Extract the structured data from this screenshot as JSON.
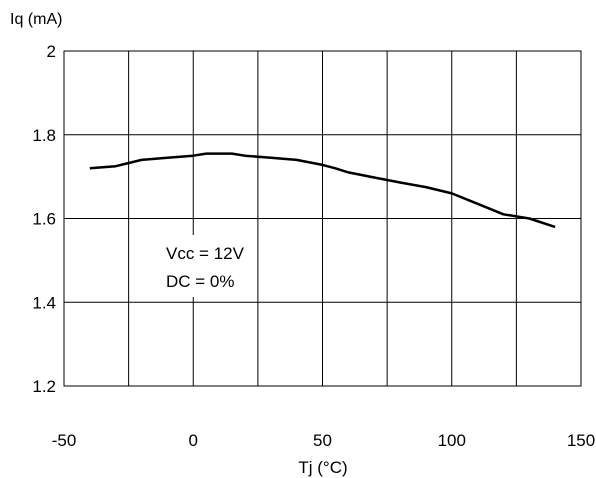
{
  "chart_data": {
    "type": "line",
    "ylabel": "Iq (mA)",
    "xlabel": "Tj (°C)",
    "xlim": [
      -50,
      150
    ],
    "ylim": [
      1.2,
      2.0
    ],
    "x_ticks": [
      "-50",
      "0",
      "50",
      "100",
      "150"
    ],
    "y_ticks": [
      "1.2",
      "1.4",
      "1.6",
      "1.8",
      "2"
    ],
    "grid": true,
    "annotations": [
      "Vcc = 12V",
      "DC = 0%"
    ],
    "series": [
      {
        "x": [
          -40,
          -30,
          -20,
          -10,
          0,
          5,
          15,
          20,
          30,
          40,
          50,
          55,
          60,
          70,
          80,
          90,
          100,
          110,
          120,
          130,
          140
        ],
        "y": [
          1.72,
          1.725,
          1.74,
          1.745,
          1.75,
          1.755,
          1.755,
          1.75,
          1.745,
          1.74,
          1.728,
          1.72,
          1.71,
          1.698,
          1.686,
          1.675,
          1.66,
          1.635,
          1.61,
          1.6,
          1.58
        ]
      }
    ]
  }
}
